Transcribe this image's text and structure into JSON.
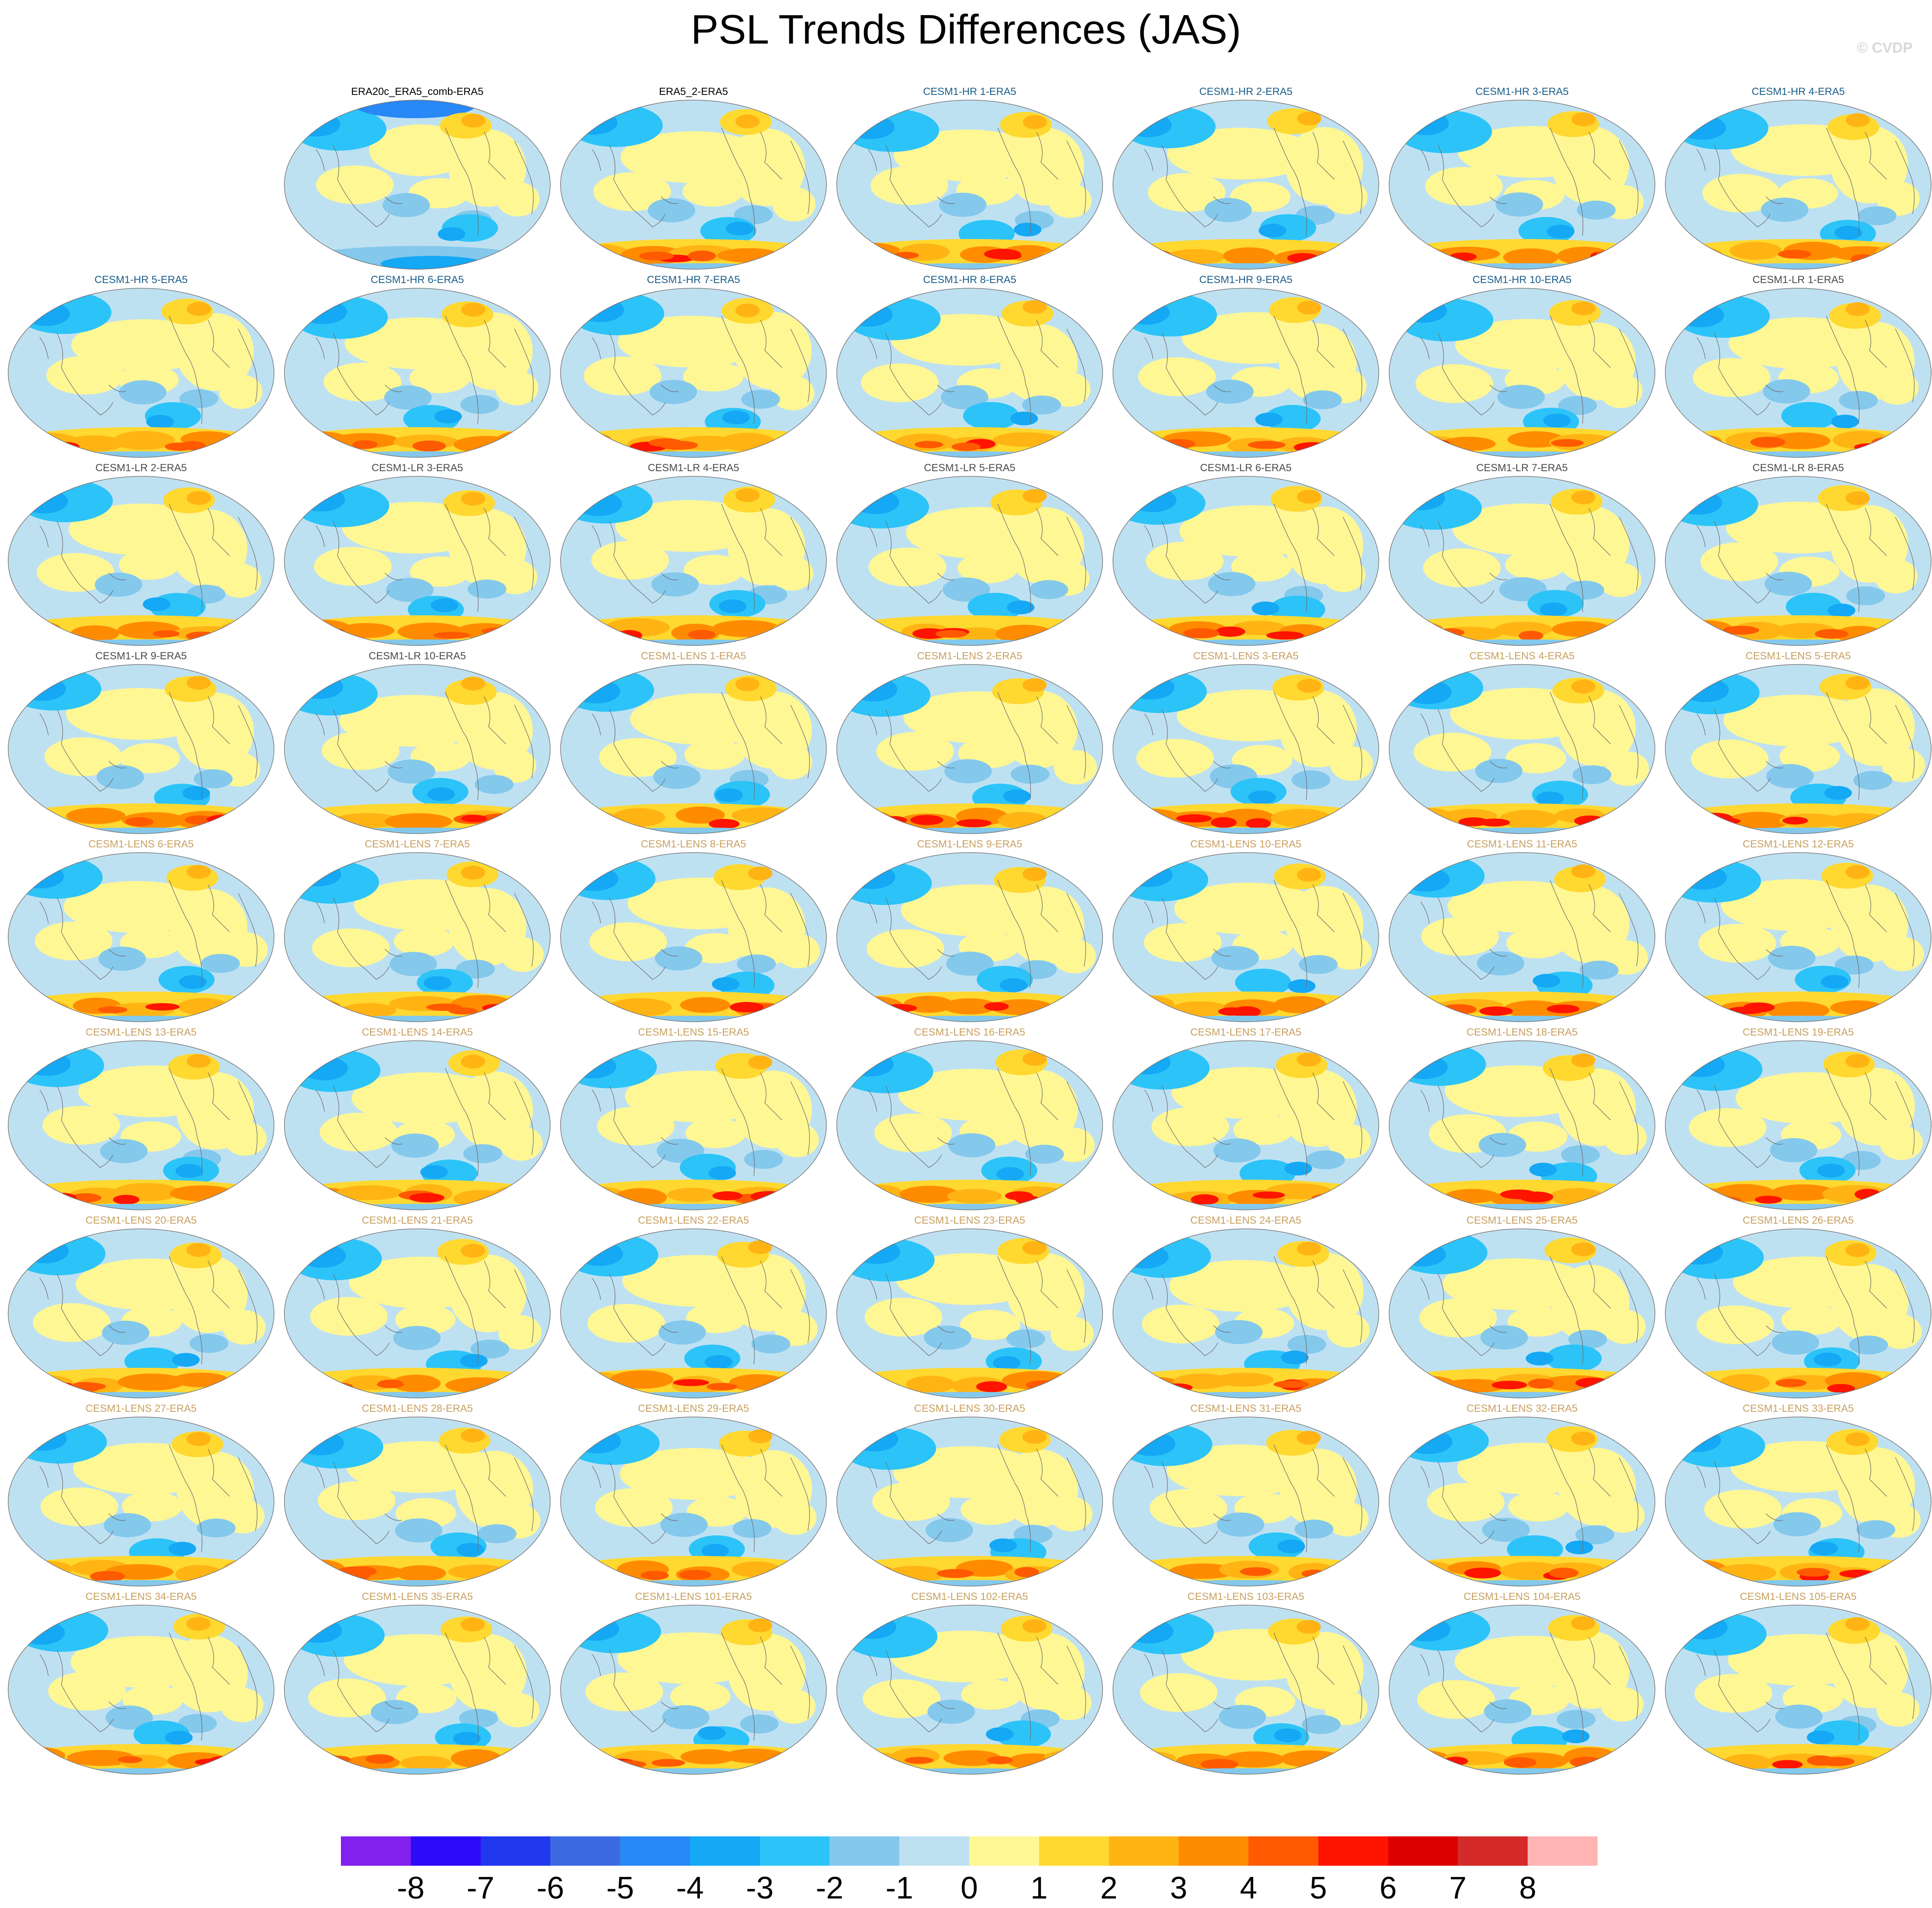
{
  "figure": {
    "title": "PSL Trends Differences (JAS)",
    "copyright": "© CVDP"
  },
  "colors": {
    "label_obs": "#000000",
    "label_hr": "#1a5d8a",
    "label_lr": "#4a4a4a",
    "label_lens": "#c8a060",
    "coast": "#6e6e6e"
  },
  "colorbar": {
    "ticks": [
      "-8",
      "-7",
      "-6",
      "-5",
      "-4",
      "-3",
      "-2",
      "-1",
      "0",
      "1",
      "2",
      "3",
      "4",
      "5",
      "6",
      "7",
      "8"
    ],
    "colors": [
      "#8220ee",
      "#2d0bf8",
      "#2038ee",
      "#3c6ae3",
      "#2888f5",
      "#14a8f5",
      "#2cc4f8",
      "#84c8ec",
      "#bee1f2",
      "#fff794",
      "#ffd830",
      "#ffb414",
      "#ff8c00",
      "#ff5a00",
      "#ff1400",
      "#dc0000",
      "#d42a2a",
      "#ffb4b4"
    ]
  },
  "panels": [
    {
      "label": "ERA20c_ERA5_comb-ERA5",
      "group": "obs",
      "variant": "a"
    },
    {
      "label": "ERA5_2-ERA5",
      "group": "obs",
      "variant": "b"
    },
    {
      "label": "CESM1-HR 1-ERA5",
      "group": "hr"
    },
    {
      "label": "CESM1-HR 2-ERA5",
      "group": "hr"
    },
    {
      "label": "CESM1-HR 3-ERA5",
      "group": "hr"
    },
    {
      "label": "CESM1-HR 4-ERA5",
      "group": "hr"
    },
    {
      "label": "CESM1-HR 5-ERA5",
      "group": "hr"
    },
    {
      "label": "CESM1-HR 6-ERA5",
      "group": "hr"
    },
    {
      "label": "CESM1-HR 7-ERA5",
      "group": "hr"
    },
    {
      "label": "CESM1-HR 8-ERA5",
      "group": "hr"
    },
    {
      "label": "CESM1-HR 9-ERA5",
      "group": "hr"
    },
    {
      "label": "CESM1-HR 10-ERA5",
      "group": "hr"
    },
    {
      "label": "CESM1-LR 1-ERA5",
      "group": "lr"
    },
    {
      "label": "CESM1-LR 2-ERA5",
      "group": "lr"
    },
    {
      "label": "CESM1-LR 3-ERA5",
      "group": "lr"
    },
    {
      "label": "CESM1-LR 4-ERA5",
      "group": "lr"
    },
    {
      "label": "CESM1-LR 5-ERA5",
      "group": "lr"
    },
    {
      "label": "CESM1-LR 6-ERA5",
      "group": "lr"
    },
    {
      "label": "CESM1-LR 7-ERA5",
      "group": "lr"
    },
    {
      "label": "CESM1-LR 8-ERA5",
      "group": "lr"
    },
    {
      "label": "CESM1-LR 9-ERA5",
      "group": "lr"
    },
    {
      "label": "CESM1-LR 10-ERA5",
      "group": "lr"
    },
    {
      "label": "CESM1-LENS 1-ERA5",
      "group": "lens"
    },
    {
      "label": "CESM1-LENS 2-ERA5",
      "group": "lens"
    },
    {
      "label": "CESM1-LENS 3-ERA5",
      "group": "lens"
    },
    {
      "label": "CESM1-LENS 4-ERA5",
      "group": "lens"
    },
    {
      "label": "CESM1-LENS 5-ERA5",
      "group": "lens"
    },
    {
      "label": "CESM1-LENS 6-ERA5",
      "group": "lens"
    },
    {
      "label": "CESM1-LENS 7-ERA5",
      "group": "lens"
    },
    {
      "label": "CESM1-LENS 8-ERA5",
      "group": "lens"
    },
    {
      "label": "CESM1-LENS 9-ERA5",
      "group": "lens"
    },
    {
      "label": "CESM1-LENS 10-ERA5",
      "group": "lens"
    },
    {
      "label": "CESM1-LENS 11-ERA5",
      "group": "lens"
    },
    {
      "label": "CESM1-LENS 12-ERA5",
      "group": "lens"
    },
    {
      "label": "CESM1-LENS 13-ERA5",
      "group": "lens"
    },
    {
      "label": "CESM1-LENS 14-ERA5",
      "group": "lens"
    },
    {
      "label": "CESM1-LENS 15-ERA5",
      "group": "lens"
    },
    {
      "label": "CESM1-LENS 16-ERA5",
      "group": "lens"
    },
    {
      "label": "CESM1-LENS 17-ERA5",
      "group": "lens"
    },
    {
      "label": "CESM1-LENS 18-ERA5",
      "group": "lens"
    },
    {
      "label": "CESM1-LENS 19-ERA5",
      "group": "lens"
    },
    {
      "label": "CESM1-LENS 20-ERA5",
      "group": "lens"
    },
    {
      "label": "CESM1-LENS 21-ERA5",
      "group": "lens"
    },
    {
      "label": "CESM1-LENS 22-ERA5",
      "group": "lens"
    },
    {
      "label": "CESM1-LENS 23-ERA5",
      "group": "lens"
    },
    {
      "label": "CESM1-LENS 24-ERA5",
      "group": "lens"
    },
    {
      "label": "CESM1-LENS 25-ERA5",
      "group": "lens"
    },
    {
      "label": "CESM1-LENS 26-ERA5",
      "group": "lens"
    },
    {
      "label": "CESM1-LENS 27-ERA5",
      "group": "lens"
    },
    {
      "label": "CESM1-LENS 28-ERA5",
      "group": "lens"
    },
    {
      "label": "CESM1-LENS 29-ERA5",
      "group": "lens"
    },
    {
      "label": "CESM1-LENS 30-ERA5",
      "group": "lens"
    },
    {
      "label": "CESM1-LENS 31-ERA5",
      "group": "lens"
    },
    {
      "label": "CESM1-LENS 32-ERA5",
      "group": "lens"
    },
    {
      "label": "CESM1-LENS 33-ERA5",
      "group": "lens"
    },
    {
      "label": "CESM1-LENS 34-ERA5",
      "group": "lens"
    },
    {
      "label": "CESM1-LENS 35-ERA5",
      "group": "lens"
    },
    {
      "label": "CESM1-LENS 101-ERA5",
      "group": "lens"
    },
    {
      "label": "CESM1-LENS 102-ERA5",
      "group": "lens"
    },
    {
      "label": "CESM1-LENS 103-ERA5",
      "group": "lens"
    },
    {
      "label": "CESM1-LENS 104-ERA5",
      "group": "lens"
    },
    {
      "label": "CESM1-LENS 105-ERA5",
      "group": "lens"
    }
  ]
}
